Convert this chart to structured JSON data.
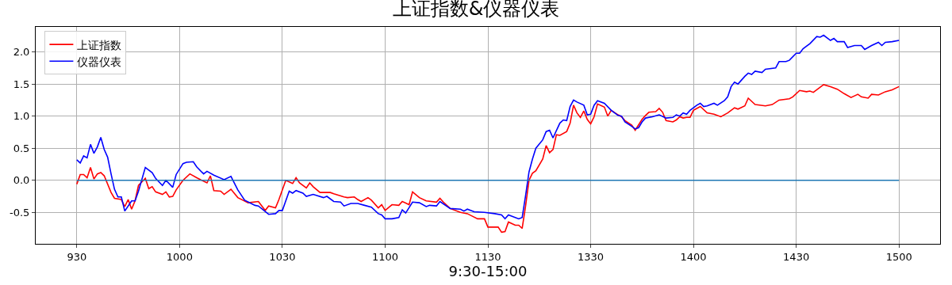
{
  "chart_data": {
    "type": "line",
    "title": "上证指数&仪器仪表",
    "xlabel": "9:30-15:00",
    "ylim": [
      -0.99,
      2.39
    ],
    "categories": [
      "930",
      null,
      null,
      null,
      null,
      null,
      null,
      null,
      null,
      null,
      null,
      null,
      null,
      null,
      null,
      null,
      null,
      null,
      null,
      null,
      null,
      null,
      null,
      null,
      null,
      null,
      null,
      null,
      null,
      null,
      "1000",
      null,
      null,
      null,
      null,
      null,
      null,
      null,
      null,
      null,
      null,
      null,
      null,
      null,
      null,
      null,
      null,
      null,
      null,
      null,
      null,
      null,
      null,
      null,
      null,
      null,
      null,
      null,
      null,
      null,
      "1030",
      null,
      null,
      null,
      null,
      null,
      null,
      null,
      null,
      null,
      null,
      null,
      null,
      null,
      null,
      null,
      null,
      null,
      null,
      null,
      null,
      null,
      null,
      null,
      null,
      null,
      null,
      null,
      null,
      null,
      "1100",
      null,
      null,
      null,
      null,
      null,
      null,
      null,
      null,
      null,
      null,
      null,
      null,
      null,
      null,
      null,
      null,
      null,
      null,
      null,
      null,
      null,
      null,
      null,
      null,
      null,
      null,
      null,
      null,
      null,
      "1130",
      null,
      null,
      null,
      null,
      null,
      null,
      null,
      null,
      null,
      null,
      null,
      null,
      null,
      null,
      null,
      null,
      null,
      null,
      null,
      null,
      null,
      null,
      null,
      null,
      null,
      null,
      null,
      null,
      null,
      "1330",
      null,
      null,
      null,
      null,
      null,
      null,
      null,
      null,
      null,
      null,
      null,
      null,
      null,
      null,
      null,
      null,
      null,
      null,
      null,
      null,
      null,
      null,
      null,
      null,
      null,
      null,
      null,
      null,
      null,
      "1400",
      null,
      null,
      null,
      null,
      null,
      null,
      null,
      null,
      null,
      null,
      null,
      null,
      null,
      null,
      null,
      null,
      null,
      null,
      null,
      null,
      null,
      null,
      null,
      null,
      null,
      null,
      null,
      null,
      null,
      "1430",
      null,
      null,
      null,
      null,
      null,
      null,
      null,
      null,
      null,
      null,
      null,
      null,
      null,
      null,
      null,
      null,
      null,
      null,
      null,
      null,
      null,
      null,
      null,
      null,
      null,
      null,
      null,
      null,
      null,
      "1500"
    ],
    "yticks": [
      {
        "value": -0.5,
        "label": "-0.5"
      },
      {
        "value": 0,
        "label": "0.0"
      },
      {
        "value": 0.5,
        "label": "0.5"
      },
      {
        "value": 1,
        "label": "1.0"
      },
      {
        "value": 1.5,
        "label": "1.5"
      },
      {
        "value": 2,
        "label": "2.0"
      }
    ],
    "grid": true,
    "legend": "top left",
    "series": [
      {
        "name": "上证指数",
        "color": "#ff0000",
        "values": [
          -0.06,
          0.09,
          0.09,
          0.04,
          0.2,
          0.02,
          0.1,
          0.12,
          0.07,
          null,
          -0.19,
          -0.28,
          null,
          -0.3,
          -0.41,
          -0.3,
          -0.45,
          -0.32,
          -0.08,
          null,
          0.03,
          -0.13,
          -0.1,
          -0.18,
          null,
          -0.22,
          -0.18,
          -0.26,
          -0.25,
          -0.15,
          null,
          0.0,
          null,
          0.1,
          null,
          0.04,
          null,
          null,
          -0.04,
          0.07,
          -0.16,
          null,
          -0.17,
          -0.22,
          null,
          -0.14,
          null,
          -0.27,
          null,
          null,
          -0.35,
          null,
          null,
          -0.33,
          null,
          -0.47,
          -0.4,
          null,
          -0.43,
          -0.3,
          null,
          0.0,
          null,
          -0.05,
          0.04,
          -0.04,
          null,
          -0.12,
          -0.04,
          -0.1,
          null,
          -0.19,
          null,
          null,
          -0.19,
          -0.21,
          null,
          null,
          -0.26,
          -0.27,
          null,
          -0.26,
          -0.3,
          -0.33,
          null,
          -0.27,
          -0.31,
          null,
          -0.43,
          -0.38,
          -0.47,
          null,
          -0.38,
          null,
          -0.39,
          -0.33,
          null,
          -0.38,
          -0.18,
          null,
          -0.27,
          null,
          -0.32,
          null,
          null,
          -0.34,
          -0.28,
          -0.34,
          null,
          -0.44,
          null,
          null,
          -0.5,
          null,
          -0.52,
          null,
          null,
          -0.6,
          null,
          -0.6,
          -0.73,
          null,
          null,
          -0.73,
          -0.81,
          -0.8,
          -0.65,
          null,
          -0.7,
          -0.7,
          -0.75,
          -0.4,
          0.0,
          0.11,
          0.15,
          null,
          0.33,
          0.54,
          0.43,
          0.48,
          0.71,
          0.7,
          null,
          0.76,
          0.89,
          1.17,
          1.05,
          0.98,
          1.08,
          0.95,
          0.88,
          0.99,
          1.19,
          null,
          1.14,
          1.0,
          1.09,
          null,
          1.02,
          0.99,
          0.93,
          null,
          0.86,
          0.78,
          null,
          0.95,
          1.01,
          1.06,
          null,
          1.07,
          1.12,
          1.06,
          0.93,
          null,
          0.91,
          0.94,
          0.99,
          0.97,
          0.98,
          0.98,
          1.09,
          null,
          1.15,
          null,
          1.05,
          null,
          1.03,
          null,
          0.99,
          null,
          1.05,
          null,
          1.13,
          1.11,
          null,
          1.16,
          1.28,
          null,
          1.18,
          null,
          null,
          1.16,
          null,
          1.18,
          null,
          1.25,
          null,
          null,
          1.27,
          1.3,
          null,
          1.4,
          null,
          1.38,
          1.39,
          1.37,
          null,
          null,
          1.49,
          null,
          1.46,
          null,
          1.42,
          null,
          1.35,
          null,
          1.29,
          null,
          1.34,
          1.3,
          null,
          1.28,
          1.34,
          null,
          1.33,
          null,
          1.38,
          null,
          1.41,
          null,
          1.46
        ]
      },
      {
        "name": "仪器仪表",
        "color": "#0000ff",
        "values": [
          0.32,
          0.27,
          0.38,
          0.35,
          0.56,
          0.42,
          0.52,
          0.67,
          0.48,
          0.36,
          0.1,
          -0.14,
          -0.26,
          -0.26,
          -0.48,
          null,
          -0.32,
          -0.32,
          -0.17,
          null,
          0.2,
          null,
          0.12,
          0.03,
          null,
          -0.08,
          0.0,
          null,
          -0.11,
          0.09,
          null,
          0.26,
          0.28,
          null,
          0.29,
          0.21,
          null,
          0.1,
          0.14,
          null,
          0.08,
          null,
          null,
          0.01,
          null,
          0.06,
          null,
          -0.15,
          null,
          -0.31,
          null,
          null,
          -0.39,
          -0.4,
          null,
          null,
          -0.53,
          null,
          -0.52,
          -0.47,
          -0.47,
          null,
          -0.17,
          -0.2,
          -0.16,
          null,
          -0.2,
          -0.25,
          null,
          -0.22,
          null,
          null,
          -0.27,
          -0.25,
          null,
          -0.33,
          null,
          -0.34,
          -0.4,
          null,
          -0.36,
          null,
          -0.36,
          null,
          -0.39,
          null,
          -0.42,
          null,
          -0.52,
          -0.54,
          -0.6,
          null,
          -0.6,
          null,
          -0.58,
          -0.46,
          -0.51,
          null,
          -0.34,
          null,
          -0.35,
          null,
          -0.41,
          -0.39,
          null,
          -0.4,
          -0.33,
          null,
          null,
          -0.44,
          null,
          null,
          -0.45,
          -0.48,
          -0.45,
          null,
          -0.49,
          null,
          null,
          -0.5,
          null,
          null,
          -0.52,
          null,
          -0.54,
          -0.6,
          -0.54,
          null,
          null,
          -0.6,
          -0.58,
          -0.24,
          0.13,
          0.33,
          0.5,
          null,
          0.63,
          0.76,
          0.78,
          0.66,
          null,
          0.89,
          0.94,
          0.93,
          1.15,
          1.25,
          1.22,
          null,
          1.17,
          1.02,
          1.03,
          1.17,
          1.24,
          null,
          1.2,
          null,
          1.09,
          null,
          1.01,
          1.0,
          0.91,
          null,
          0.84,
          0.8,
          0.82,
          0.91,
          0.97,
          null,
          0.99,
          null,
          1.02,
          null,
          0.97,
          null,
          0.98,
          1.02,
          1.0,
          1.05,
          1.03,
          1.09,
          null,
          1.17,
          1.2,
          1.15,
          1.16,
          null,
          1.2,
          1.17,
          null,
          1.24,
          1.3,
          1.46,
          1.53,
          1.5,
          null,
          1.62,
          1.67,
          1.65,
          1.7,
          null,
          1.68,
          1.73,
          null,
          null,
          1.75,
          1.85,
          null,
          1.85,
          1.87,
          null,
          1.98,
          1.98,
          2.05,
          null,
          2.13,
          null,
          2.24,
          2.23,
          2.26,
          null,
          2.18,
          2.21,
          2.16,
          null,
          2.16,
          2.07,
          null,
          2.1,
          null,
          2.1,
          2.04,
          null,
          2.1,
          null,
          2.15,
          2.1,
          2.15,
          null,
          2.16,
          null,
          2.18
        ]
      },
      {
        "color": "#1f77b4",
        "values": [
          0,
          0,
          0,
          0,
          0,
          0,
          0,
          0,
          0,
          0,
          0,
          0,
          0,
          0,
          0,
          0,
          0,
          0,
          0,
          0,
          0,
          0,
          0,
          0,
          0,
          0,
          0,
          0,
          0,
          0,
          0,
          0,
          0,
          0,
          0,
          0,
          0,
          0,
          0,
          0,
          0,
          0,
          0,
          0,
          0,
          0,
          0,
          0,
          0,
          0,
          0,
          0,
          0,
          0,
          0,
          0,
          0,
          0,
          0,
          0,
          0,
          0,
          0,
          0,
          0,
          0,
          0,
          0,
          0,
          0,
          0,
          0,
          0,
          0,
          0,
          0,
          0,
          0,
          0,
          0,
          0,
          0,
          0,
          0,
          0,
          0,
          0,
          0,
          0,
          0,
          0,
          0,
          0,
          0,
          0,
          0,
          0,
          0,
          0,
          0,
          0,
          0,
          0,
          0,
          0,
          0,
          0,
          0,
          0,
          0,
          0,
          0,
          0,
          0,
          0,
          0,
          0,
          0,
          0,
          0,
          0,
          0,
          0,
          0,
          0,
          0,
          0,
          0,
          0,
          0,
          0,
          0,
          0,
          0,
          0,
          0,
          0,
          0,
          0,
          0,
          0,
          0,
          0,
          0,
          0,
          0,
          0,
          0,
          0,
          0,
          0,
          0,
          0,
          0,
          0,
          0,
          0,
          0,
          0,
          0,
          0,
          0,
          0,
          0,
          0,
          0,
          0,
          0,
          0,
          0,
          0,
          0,
          0,
          0,
          0,
          0,
          0,
          0,
          0,
          0,
          0,
          0,
          0,
          0,
          0,
          0,
          0,
          0,
          0,
          0,
          0,
          0,
          0,
          0,
          0,
          0,
          0,
          0,
          0,
          0,
          0,
          0,
          0,
          0,
          0,
          0,
          0,
          0,
          0,
          0,
          0,
          0,
          0,
          0,
          0,
          0,
          0,
          0,
          0,
          0,
          0,
          0,
          0,
          0,
          0,
          0,
          0,
          0,
          0,
          0,
          0,
          0,
          0,
          0,
          0,
          0,
          0,
          0,
          0,
          0,
          0
        ]
      }
    ]
  }
}
